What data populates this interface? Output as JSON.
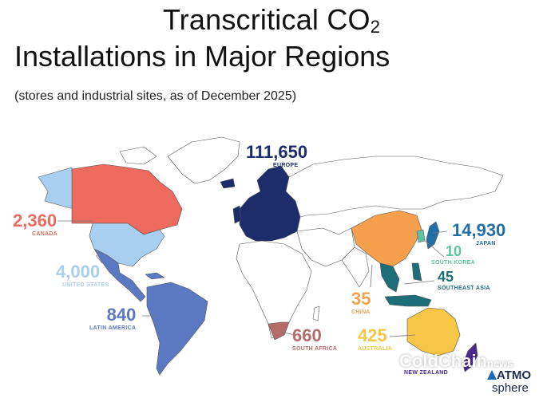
{
  "title_line1": "Transcritical CO",
  "title_line1_sub": "2",
  "title_line2": "Installations in Major Regions",
  "subtitle": "(stores and industrial sites, as of December 2025)",
  "colors": {
    "canada": "#ec6b5e",
    "united_states": "#a8cff0",
    "latin_america": "#5b78c2",
    "europe": "#1d2c6b",
    "china": "#f4a04c",
    "japan": "#1f6ea8",
    "south_korea": "#5cc3a3",
    "southeast_asia": "#1d6e78",
    "australia": "#f7c646",
    "new_zealand": "#4a2a8c",
    "south_africa": "#b76a6a",
    "land_other": "#ffffff",
    "border": "#555555"
  },
  "regions": {
    "europe": {
      "value": "111,650",
      "name": "EUROPE"
    },
    "japan": {
      "value": "14,930",
      "name": "JAPAN"
    },
    "south_korea": {
      "value": "10",
      "name": "SOUTH KOREA"
    },
    "southeast_asia": {
      "value": "45",
      "name": "SOUTHEAST ASIA"
    },
    "china": {
      "value": "35",
      "name": "CHINA"
    },
    "australia": {
      "value": "425",
      "name": "AUSTRALIA"
    },
    "new_zealand": {
      "value": "",
      "name": "NEW ZEALAND"
    },
    "south_africa": {
      "value": "660",
      "name": "SOUTH AFRICA"
    },
    "latin_america": {
      "value": "840",
      "name": "LATIN AMERICA"
    },
    "united_states": {
      "value": "4,000",
      "name": "UNITED STATES"
    },
    "canada": {
      "value": "2,360",
      "name": "CANADA"
    }
  },
  "watermark": {
    "main": "ColdChain",
    "suffix": "news"
  },
  "logo": {
    "word": "ATMO",
    "sub": "sphere"
  }
}
